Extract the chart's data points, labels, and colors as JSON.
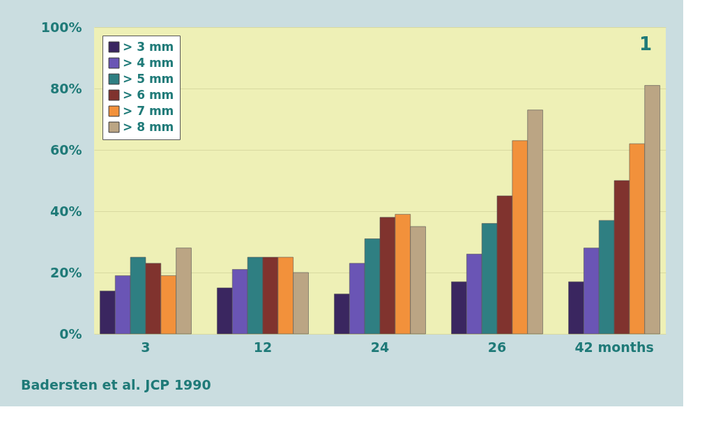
{
  "chart_data": {
    "type": "bar",
    "categories": [
      "3",
      "12",
      "24",
      "26",
      "42 months"
    ],
    "series": [
      {
        "name": "> 3 mm",
        "color": "#3a2660",
        "values": [
          14,
          15,
          13,
          17,
          17
        ]
      },
      {
        "name": "> 4 mm",
        "color": "#6a55b5",
        "values": [
          19,
          21,
          23,
          26,
          28
        ]
      },
      {
        "name": "> 5 mm",
        "color": "#2f7f82",
        "values": [
          25,
          25,
          31,
          36,
          37
        ]
      },
      {
        "name": "> 6 mm",
        "color": "#80332e",
        "values": [
          23,
          25,
          38,
          45,
          50
        ]
      },
      {
        "name": "> 7 mm",
        "color": "#f2913b",
        "values": [
          19,
          25,
          39,
          63,
          62
        ]
      },
      {
        "name": "> 8 mm",
        "color": "#bba584",
        "values": [
          28,
          20,
          35,
          73,
          81
        ]
      }
    ],
    "ylim": [
      0,
      100
    ],
    "yticks": [
      {
        "value": 0,
        "label": "0%"
      },
      {
        "value": 20,
        "label": "20%"
      },
      {
        "value": 40,
        "label": "40%"
      },
      {
        "value": 60,
        "label": "60%"
      },
      {
        "value": 80,
        "label": "80%"
      },
      {
        "value": 100,
        "label": "100%"
      }
    ],
    "grid": "y",
    "legend": "top left",
    "annotations": [
      "1",
      "Badersten et al. JCP 1990"
    ]
  }
}
